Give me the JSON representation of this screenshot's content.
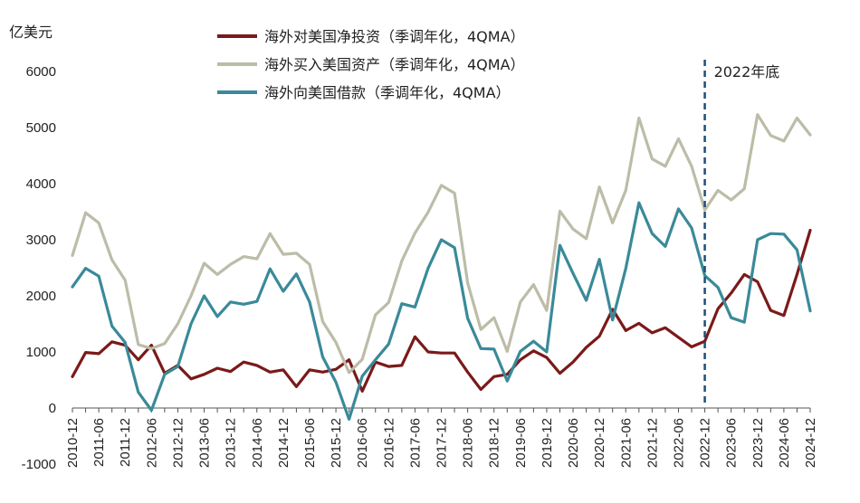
{
  "chart_data": {
    "type": "line",
    "title": "",
    "ylabel": "亿美元",
    "xlabel": "",
    "ylim": [
      -1000,
      6000
    ],
    "yticks": [
      -1000,
      0,
      1000,
      2000,
      3000,
      4000,
      5000,
      6000
    ],
    "legend_position": "top-center",
    "x": [
      "2010-12",
      "2011-03",
      "2011-06",
      "2011-09",
      "2011-12",
      "2012-03",
      "2012-06",
      "2012-09",
      "2012-12",
      "2013-03",
      "2013-06",
      "2013-09",
      "2013-12",
      "2014-03",
      "2014-06",
      "2014-09",
      "2014-12",
      "2015-03",
      "2015-06",
      "2015-09",
      "2015-12",
      "2016-03",
      "2016-06",
      "2016-09",
      "2016-12",
      "2017-03",
      "2017-06",
      "2017-09",
      "2017-12",
      "2018-03",
      "2018-06",
      "2018-09",
      "2018-12",
      "2019-03",
      "2019-06",
      "2019-09",
      "2019-12",
      "2020-03",
      "2020-06",
      "2020-09",
      "2020-12",
      "2021-03",
      "2021-06",
      "2021-09",
      "2021-12",
      "2022-03",
      "2022-06",
      "2022-09",
      "2022-12",
      "2023-03",
      "2023-06",
      "2023-09",
      "2023-12",
      "2024-03",
      "2024-06",
      "2024-09",
      "2024-12"
    ],
    "xtick_labels": [
      "2010-12",
      "2011-06",
      "2011-12",
      "2012-06",
      "2012-12",
      "2013-06",
      "2013-12",
      "2014-06",
      "2014-12",
      "2015-06",
      "2015-12",
      "2016-06",
      "2016-12",
      "2017-06",
      "2017-12",
      "2018-06",
      "2018-12",
      "2019-06",
      "2019-12",
      "2020-06",
      "2020-12",
      "2021-06",
      "2021-12",
      "2022-06",
      "2022-12",
      "2023-06",
      "2023-12",
      "2024-06",
      "2024-12"
    ],
    "series": [
      {
        "name": "海外对美国净投资（季调年化，4QMA）",
        "color": "#7a1a1a",
        "values": [
          560,
          990,
          970,
          1180,
          1120,
          860,
          1120,
          620,
          760,
          520,
          600,
          710,
          650,
          820,
          760,
          640,
          680,
          380,
          680,
          640,
          690,
          860,
          300,
          820,
          740,
          760,
          1270,
          1000,
          980,
          980,
          640,
          330,
          560,
          600,
          860,
          1020,
          900,
          620,
          820,
          1080,
          1280,
          1760,
          1380,
          1510,
          1340,
          1430,
          1260,
          1090,
          1190,
          1770,
          2050,
          2380,
          2250,
          1740,
          1650,
          2380,
          3170
        ]
      },
      {
        "name": "海外买入美国资产（季调年化，4QMA）",
        "color": "#bcbca8",
        "values": [
          2720,
          3480,
          3300,
          2640,
          2280,
          1130,
          1060,
          1150,
          1500,
          2000,
          2580,
          2380,
          2560,
          2700,
          2660,
          3110,
          2740,
          2760,
          2560,
          1540,
          1170,
          630,
          870,
          1660,
          1880,
          2620,
          3120,
          3490,
          3970,
          3830,
          2230,
          1400,
          1610,
          1010,
          1890,
          2200,
          1740,
          3510,
          3190,
          3020,
          3940,
          3300,
          3880,
          5170,
          4440,
          4310,
          4800,
          4310,
          3530,
          3880,
          3710,
          3910,
          5230,
          4860,
          4760,
          5170,
          4870
        ]
      },
      {
        "name": "海外向美国借款（季调年化，4QMA）",
        "color": "#3a8a99",
        "values": [
          2160,
          2490,
          2350,
          1460,
          1170,
          280,
          -40,
          600,
          740,
          1500,
          2000,
          1630,
          1890,
          1850,
          1900,
          2480,
          2080,
          2390,
          1890,
          910,
          460,
          -200,
          570,
          860,
          1140,
          1860,
          1800,
          2490,
          3000,
          2860,
          1600,
          1060,
          1050,
          480,
          1010,
          1190,
          1000,
          2900,
          2400,
          1920,
          2650,
          1570,
          2490,
          3660,
          3110,
          2880,
          3550,
          3210,
          2360,
          2150,
          1610,
          1530,
          3000,
          3110,
          3100,
          2820,
          1730
        ]
      }
    ],
    "annotations": [
      {
        "label": "2022年底",
        "x": "2022-12",
        "line_color": "#1f4e79"
      }
    ]
  }
}
